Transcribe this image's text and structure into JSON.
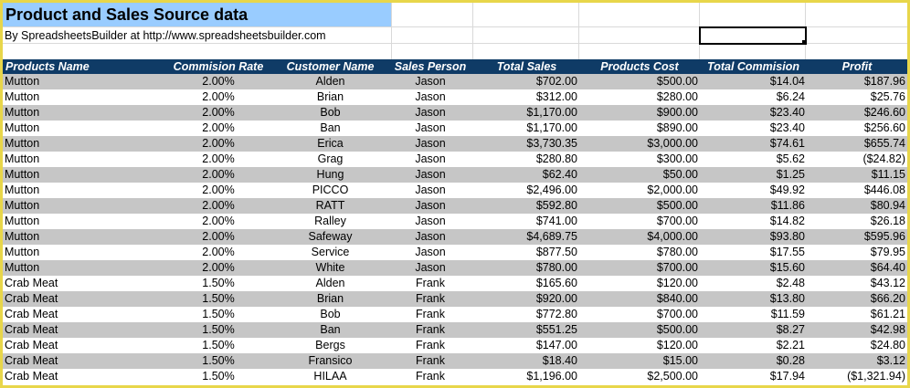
{
  "title": "Product and Sales Source data",
  "byline": "By SpreadsheetsBuilder at http://www.spreadsheetsbuilder.com",
  "columns": [
    "Products Name",
    "Commision Rate",
    "Customer Name",
    "Sales Person",
    "Total Sales",
    "Products Cost",
    "Total Commision",
    "Profit"
  ],
  "rows": [
    [
      "Mutton",
      "2.00%",
      "Alden",
      "Jason",
      "$702.00",
      "$500.00",
      "$14.04",
      "$187.96"
    ],
    [
      "Mutton",
      "2.00%",
      "Brian",
      "Jason",
      "$312.00",
      "$280.00",
      "$6.24",
      "$25.76"
    ],
    [
      "Mutton",
      "2.00%",
      "Bob",
      "Jason",
      "$1,170.00",
      "$900.00",
      "$23.40",
      "$246.60"
    ],
    [
      "Mutton",
      "2.00%",
      "Ban",
      "Jason",
      "$1,170.00",
      "$890.00",
      "$23.40",
      "$256.60"
    ],
    [
      "Mutton",
      "2.00%",
      "Erica",
      "Jason",
      "$3,730.35",
      "$3,000.00",
      "$74.61",
      "$655.74"
    ],
    [
      "Mutton",
      "2.00%",
      "Grag",
      "Jason",
      "$280.80",
      "$300.00",
      "$5.62",
      "($24.82)"
    ],
    [
      "Mutton",
      "2.00%",
      "Hung",
      "Jason",
      "$62.40",
      "$50.00",
      "$1.25",
      "$11.15"
    ],
    [
      "Mutton",
      "2.00%",
      "PICCO",
      "Jason",
      "$2,496.00",
      "$2,000.00",
      "$49.92",
      "$446.08"
    ],
    [
      "Mutton",
      "2.00%",
      "RATT",
      "Jason",
      "$592.80",
      "$500.00",
      "$11.86",
      "$80.94"
    ],
    [
      "Mutton",
      "2.00%",
      "Ralley",
      "Jason",
      "$741.00",
      "$700.00",
      "$14.82",
      "$26.18"
    ],
    [
      "Mutton",
      "2.00%",
      "Safeway",
      "Jason",
      "$4,689.75",
      "$4,000.00",
      "$93.80",
      "$595.96"
    ],
    [
      "Mutton",
      "2.00%",
      "Service",
      "Jason",
      "$877.50",
      "$780.00",
      "$17.55",
      "$79.95"
    ],
    [
      "Mutton",
      "2.00%",
      "White",
      "Jason",
      "$780.00",
      "$700.00",
      "$15.60",
      "$64.40"
    ],
    [
      "Crab Meat",
      "1.50%",
      "Alden",
      "Frank",
      "$165.60",
      "$120.00",
      "$2.48",
      "$43.12"
    ],
    [
      "Crab Meat",
      "1.50%",
      "Brian",
      "Frank",
      "$920.00",
      "$840.00",
      "$13.80",
      "$66.20"
    ],
    [
      "Crab Meat",
      "1.50%",
      "Bob",
      "Frank",
      "$772.80",
      "$700.00",
      "$11.59",
      "$61.21"
    ],
    [
      "Crab Meat",
      "1.50%",
      "Ban",
      "Frank",
      "$551.25",
      "$500.00",
      "$8.27",
      "$42.98"
    ],
    [
      "Crab Meat",
      "1.50%",
      "Bergs",
      "Frank",
      "$147.00",
      "$120.00",
      "$2.21",
      "$24.80"
    ],
    [
      "Crab Meat",
      "1.50%",
      "Fransico",
      "Frank",
      "$18.40",
      "$15.00",
      "$0.28",
      "$3.12"
    ],
    [
      "Crab Meat",
      "1.50%",
      "HILAA",
      "Frank",
      "$1,196.00",
      "$2,500.00",
      "$17.94",
      "($1,321.94)"
    ]
  ],
  "colors": {
    "header_bg": "#0f3b66",
    "title_bg": "#99ccff",
    "band_gray": "#c6c6c6",
    "negative": "#cc1f1f",
    "frame": "#e8d64a"
  }
}
